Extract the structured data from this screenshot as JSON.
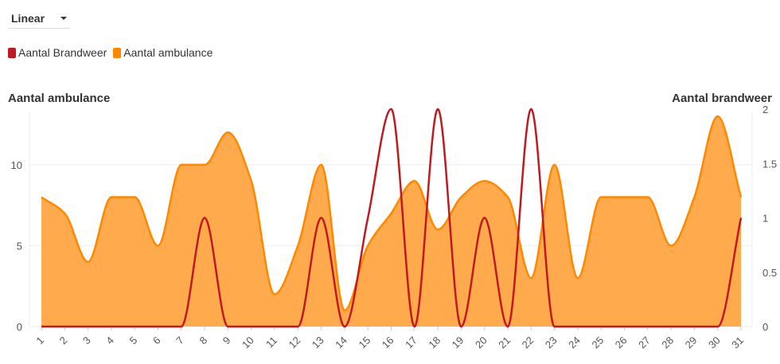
{
  "controls": {
    "interpolation_select": "Linear"
  },
  "colors": {
    "brandweer": "#c0191f",
    "ambulance": "#ff8800",
    "ambulance_fill": "#ffaa4d"
  },
  "chart_data": {
    "type": "area",
    "categories": [
      "1",
      "2",
      "3",
      "4",
      "5",
      "6",
      "7",
      "8",
      "9",
      "10",
      "11",
      "12",
      "13",
      "14",
      "15",
      "16",
      "17",
      "18",
      "19",
      "20",
      "21",
      "22",
      "23",
      "24",
      "25",
      "26",
      "27",
      "28",
      "29",
      "30",
      "31"
    ],
    "legend": [
      "Aantal Brandweer",
      "Aantal ambulance"
    ],
    "legend_placement": "top-left",
    "left_axis": {
      "title": "Aantal ambulance",
      "ticks": [
        "0",
        "5",
        "10"
      ],
      "range": [
        0,
        13
      ]
    },
    "right_axis": {
      "title": "Aantal brandweer",
      "ticks": [
        "0",
        "0.5",
        "1",
        "1.5",
        "2"
      ],
      "range": [
        0,
        2
      ]
    },
    "series": [
      {
        "name": "Aantal Brandweer",
        "axis": "right",
        "type": "line",
        "values": [
          0,
          0,
          0,
          0,
          0,
          0,
          0,
          1,
          0,
          0,
          0,
          0,
          1,
          0,
          1,
          2,
          0,
          2,
          0,
          1,
          0,
          2,
          0,
          0,
          0,
          0,
          0,
          0,
          0,
          0,
          1
        ]
      },
      {
        "name": "Aantal ambulance",
        "axis": "left",
        "type": "area",
        "values": [
          8,
          7,
          4,
          8,
          8,
          5,
          10,
          10,
          12,
          9,
          2,
          5,
          10,
          1,
          5,
          7,
          9,
          6,
          8,
          9,
          8,
          3,
          10,
          3,
          8,
          8,
          8,
          5,
          8,
          13,
          8
        ]
      }
    ],
    "grid": true
  }
}
